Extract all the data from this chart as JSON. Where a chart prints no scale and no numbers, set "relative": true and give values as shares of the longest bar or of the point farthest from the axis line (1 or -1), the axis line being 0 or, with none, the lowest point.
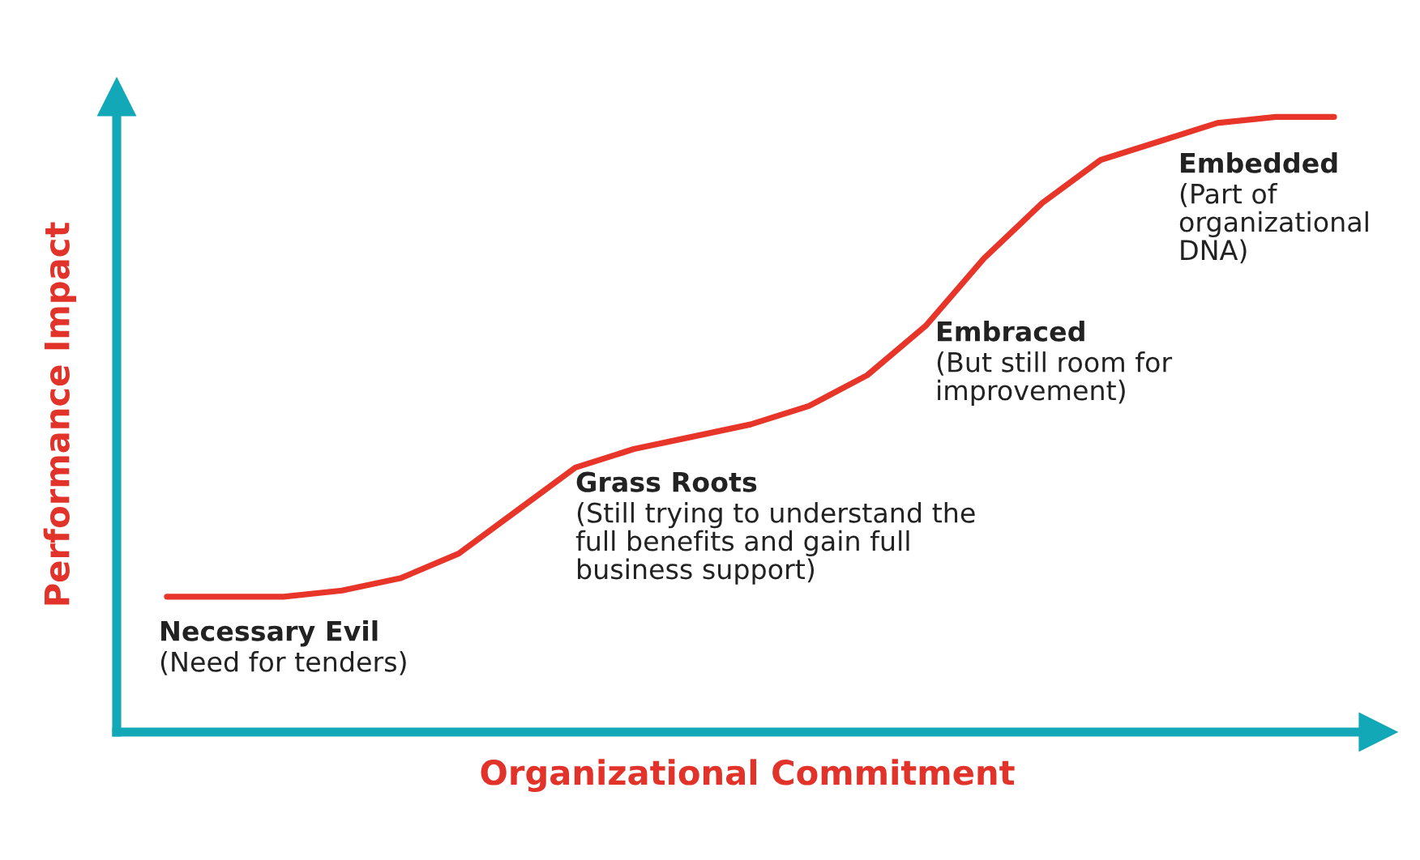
{
  "chart_data": {
    "type": "line",
    "relative": true,
    "xlabel": "Organizational Commitment",
    "ylabel": "Performance Impact",
    "categories": [
      null,
      null,
      null,
      null,
      null,
      null,
      null,
      null,
      null,
      null,
      null,
      null,
      null,
      null,
      null,
      null,
      null,
      null,
      null,
      null,
      null
    ],
    "series": [
      {
        "color": "#e8352a",
        "values": [
          0.22,
          0.22,
          0.22,
          0.23,
          0.25,
          0.29,
          0.36,
          0.43,
          0.46,
          0.48,
          0.5,
          0.53,
          0.58,
          0.66,
          0.77,
          0.86,
          0.93,
          0.96,
          0.99,
          1.0,
          1.0
        ]
      }
    ],
    "annotations": [
      "Necessary Evil\n(Need for tenders)",
      "Grass Roots\n(Still trying to understand the\nfull benefits and gain full\nbusiness support)",
      "Embraced\n(But still room for\nimprovement)",
      "Embedded\n(Part of\norganizational\nDNA)"
    ]
  }
}
